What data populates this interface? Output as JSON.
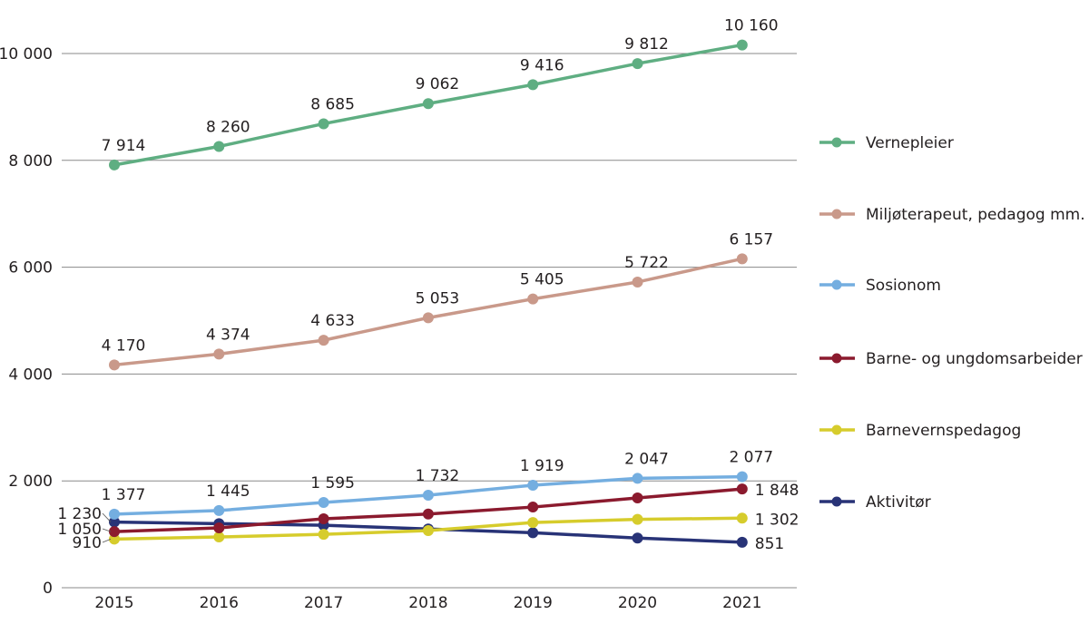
{
  "chart_data": {
    "type": "line",
    "title": "",
    "xlabel": "",
    "ylabel": "",
    "ylim": [
      0,
      10000
    ],
    "yticks": [
      0,
      2000,
      4000,
      6000,
      8000,
      10000
    ],
    "ytick_labels": [
      "0",
      "2 000",
      "4 000",
      "6 000",
      "8 000",
      "10 000"
    ],
    "grid": "horizontal",
    "legend_position": "right",
    "categories": [
      "2015",
      "2016",
      "2017",
      "2018",
      "2019",
      "2020",
      "2021"
    ],
    "series": [
      {
        "name": "Vernepleier",
        "color": "#5fae82",
        "values": [
          7914,
          8260,
          8685,
          9062,
          9416,
          9812,
          10160
        ],
        "labels": [
          "7 914",
          "8 260",
          "8 685",
          "9 062",
          "9 416",
          "9 812",
          "10 160"
        ]
      },
      {
        "name": "Miljøterapeut, pedagog mm.",
        "color": "#c9998a",
        "values": [
          4170,
          4374,
          4633,
          5053,
          5405,
          5722,
          6157
        ],
        "labels": [
          "4 170",
          "4 374",
          "4 633",
          "5 053",
          "5 405",
          "5 722",
          "6 157"
        ]
      },
      {
        "name": "Sosionom",
        "color": "#74aee0",
        "values": [
          1377,
          1445,
          1595,
          1732,
          1919,
          2047,
          2077
        ],
        "labels": [
          "1 377",
          "1 445",
          "1 595",
          "1 732",
          "1 919",
          "2 047",
          "2 077"
        ]
      },
      {
        "name": "Barne- og ungdomsarbeider",
        "color": "#8b1a2e",
        "values": [
          1050,
          1120,
          1290,
          1380,
          1510,
          1680,
          1848
        ],
        "labels": [
          "1 050",
          null,
          null,
          null,
          null,
          null,
          "1 848"
        ]
      },
      {
        "name": "Barnevernspedagog",
        "color": "#d6cc2c",
        "values": [
          910,
          950,
          1000,
          1070,
          1220,
          1280,
          1302
        ],
        "labels": [
          "910",
          null,
          null,
          null,
          null,
          null,
          "1 302"
        ]
      },
      {
        "name": "Aktivitør",
        "color": "#283377",
        "values": [
          1230,
          1200,
          1170,
          1100,
          1030,
          930,
          851
        ],
        "labels": [
          "1 230",
          null,
          null,
          null,
          null,
          null,
          "851"
        ]
      }
    ]
  }
}
